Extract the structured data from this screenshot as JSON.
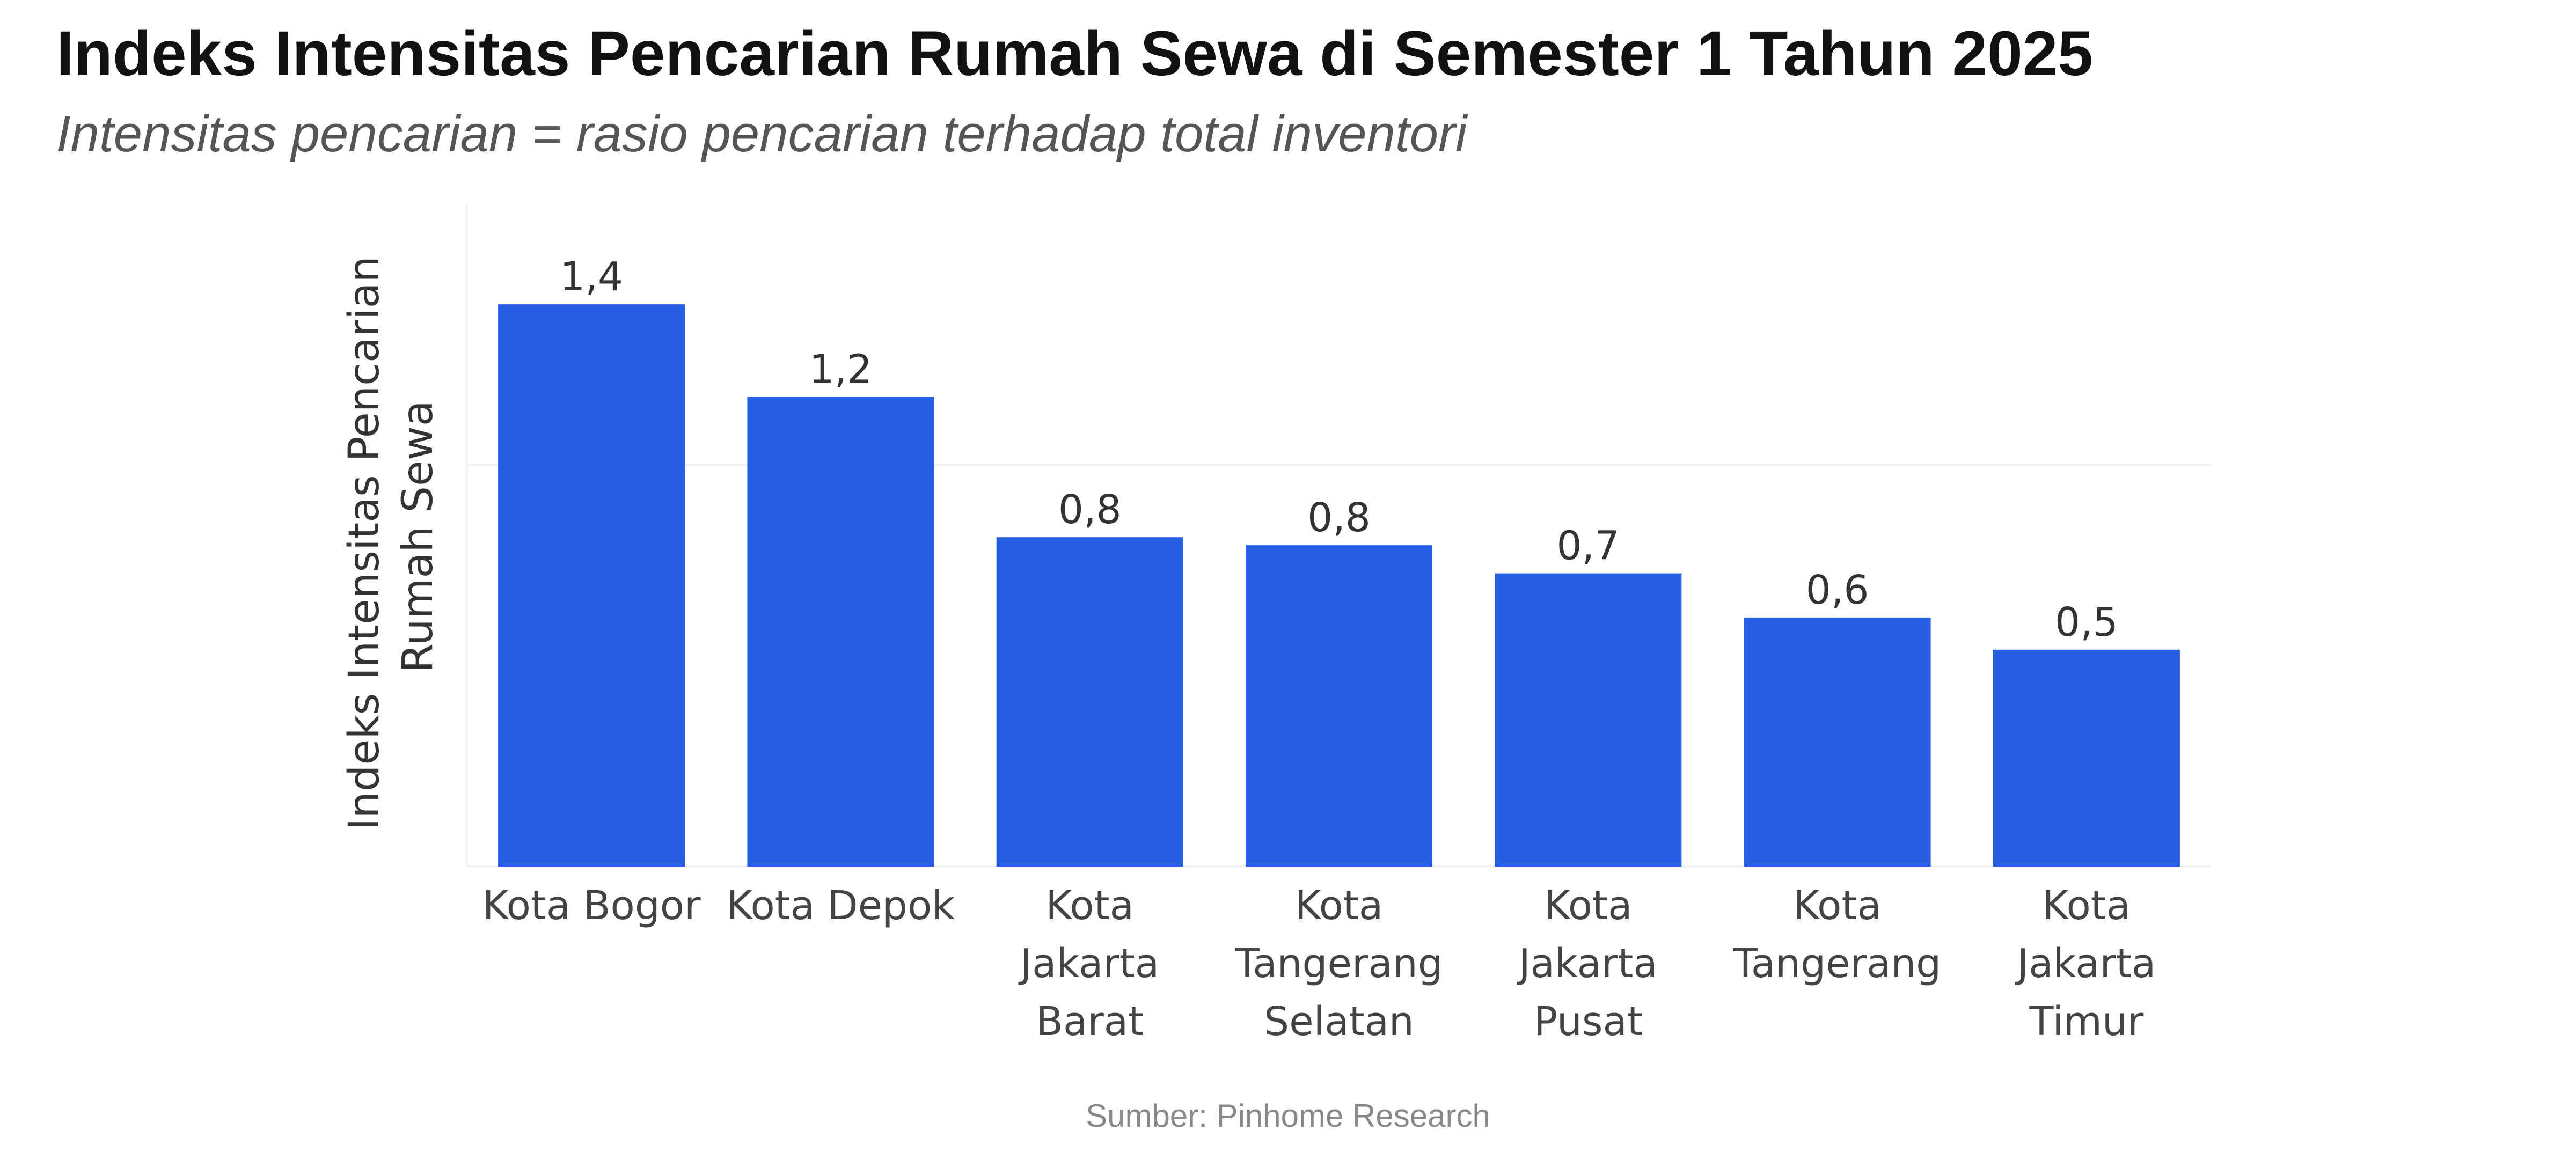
{
  "title": "Indeks Intensitas Pencarian Rumah Sewa di Semester 1 Tahun 2025",
  "subtitle": "Intensitas pencarian = rasio pencarian terhadap total inventori",
  "source": "Sumber: Pinhome Research",
  "chart_data": {
    "type": "bar",
    "title": "Indeks Intensitas Pencarian Rumah Sewa di Semester 1 Tahun 2025",
    "subtitle": "Intensitas pencarian = rasio pencarian terhadap total inventori",
    "xlabel": "",
    "ylabel_lines": [
      "Indeks Intensitas Pencarian",
      "Rumah Sewa"
    ],
    "categories": [
      [
        "Kota Bogor"
      ],
      [
        "Kota Depok"
      ],
      [
        "Kota",
        "Jakarta",
        "Barat"
      ],
      [
        "Kota",
        "Tangerang",
        "Selatan"
      ],
      [
        "Kota",
        "Jakarta",
        "Pusat"
      ],
      [
        "Kota",
        "Tangerang"
      ],
      [
        "Kota",
        "Jakarta",
        "Timur"
      ]
    ],
    "values": [
      1.4,
      1.17,
      0.82,
      0.8,
      0.73,
      0.62,
      0.54
    ],
    "value_labels": [
      "1,4",
      "1,2",
      "0,8",
      "0,8",
      "0,7",
      "0,6",
      "0,5"
    ],
    "ylim": [
      0,
      1.65
    ],
    "gridlines": [
      1.0
    ],
    "grid": true,
    "legend": "none",
    "bar_color": "#255ee3"
  }
}
